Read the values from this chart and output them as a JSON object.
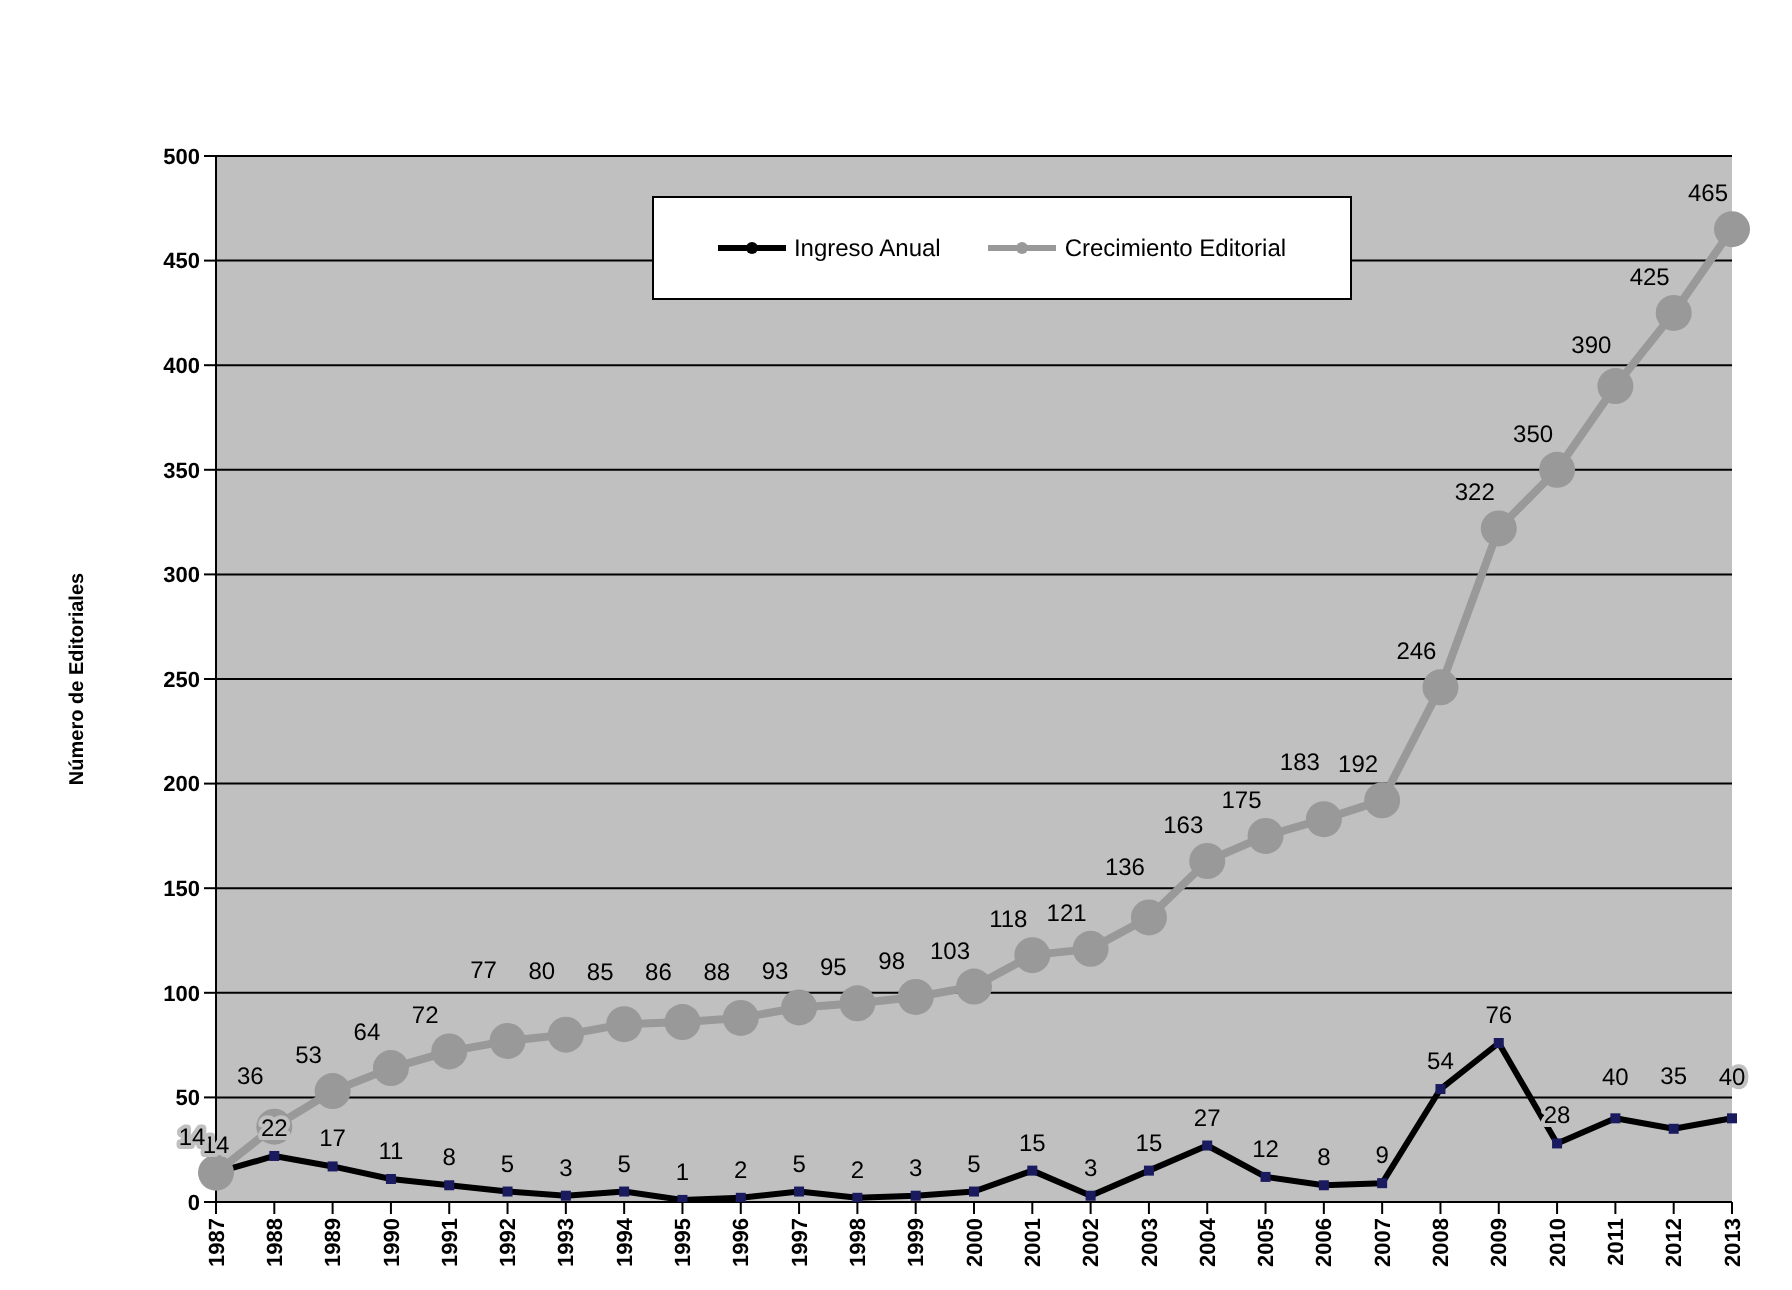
{
  "chart_data": {
    "type": "line",
    "ylabel": "Número de Editoriales",
    "categories": [
      "1987",
      "1988",
      "1989",
      "1990",
      "1991",
      "1992",
      "1993",
      "1994",
      "1995",
      "1996",
      "1997",
      "1998",
      "1999",
      "2000",
      "2001",
      "2002",
      "2003",
      "2004",
      "2005",
      "2006",
      "2007",
      "2008",
      "2009",
      "2010",
      "2011",
      "2012",
      "2013"
    ],
    "series": [
      {
        "name": "Ingreso Anual",
        "color": "#000000",
        "marker": "square",
        "values": [
          14,
          22,
          17,
          11,
          8,
          5,
          3,
          5,
          1,
          2,
          5,
          2,
          3,
          5,
          15,
          3,
          15,
          27,
          12,
          8,
          9,
          54,
          76,
          28,
          40,
          35,
          40
        ]
      },
      {
        "name": "Crecimiento Editorial",
        "color": "#999999",
        "marker": "circle",
        "values": [
          14,
          36,
          53,
          64,
          72,
          77,
          80,
          85,
          86,
          88,
          93,
          95,
          98,
          103,
          118,
          121,
          136,
          163,
          175,
          183,
          192,
          246,
          322,
          350,
          390,
          425,
          465
        ]
      }
    ],
    "ylim": [
      0,
      500
    ],
    "yticks": [
      0,
      50,
      100,
      150,
      200,
      250,
      300,
      350,
      400,
      450,
      500
    ],
    "grid": "y",
    "legend": "top",
    "data_labels": true
  }
}
